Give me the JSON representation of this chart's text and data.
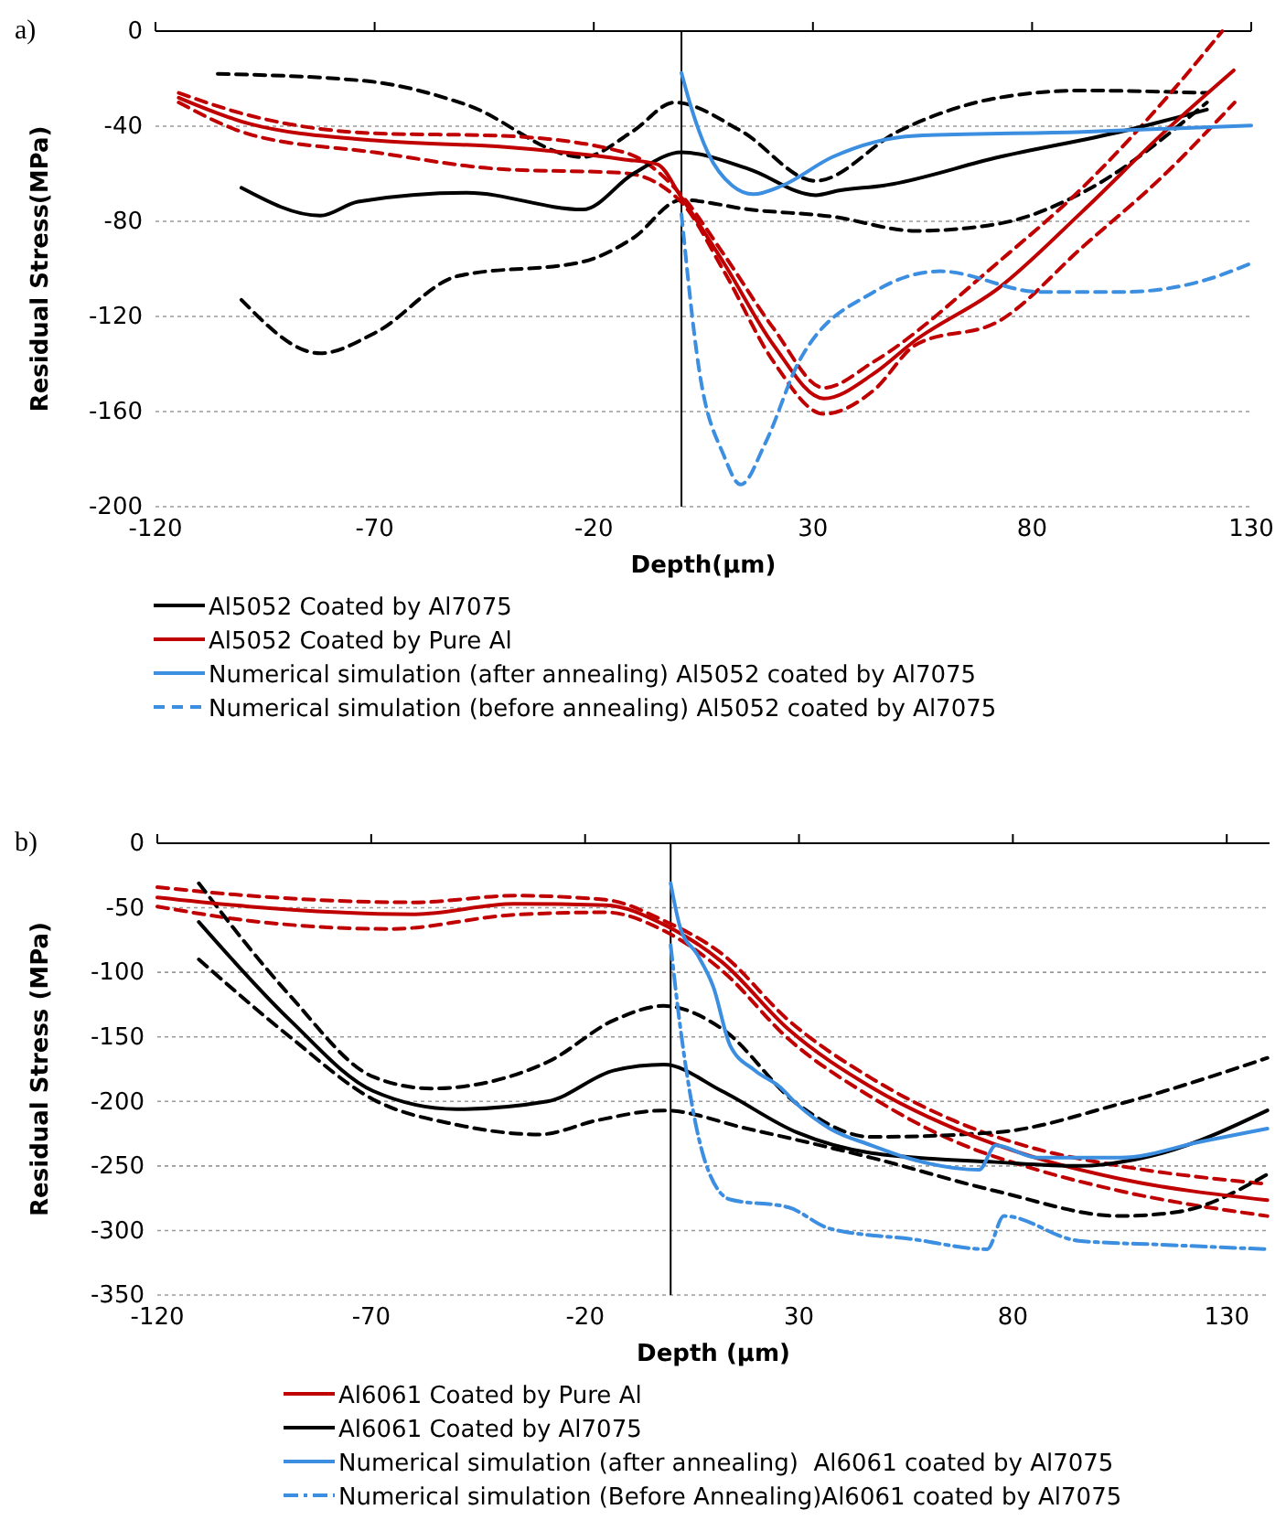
{
  "chart_data": [
    {
      "type": "line",
      "title": "a)",
      "xlabel": "Depth(μm)",
      "ylabel": "Residual Stress(MPa)",
      "xlim": [
        -120,
        130
      ],
      "xticks": [
        -120,
        -70,
        -20,
        30,
        80,
        130
      ],
      "ylim": [
        -200,
        0
      ],
      "yticks": [
        -200,
        -160,
        -120,
        -80,
        -40,
        0
      ],
      "grid": "y",
      "legend": "bottom",
      "marker": "none",
      "ref_lines": [
        {
          "axis": "x",
          "value": 0,
          "color": "#000000"
        }
      ],
      "series": [
        {
          "color": "#000000",
          "line_style": "dashed",
          "x": [
            -105.8,
            -71.9,
            -49,
            -22.5,
            -11,
            -1.6,
            13.6,
            30.6,
            49.6,
            72.4,
            91.4,
            119.9
          ],
          "values": [
            -18,
            -21,
            -31,
            -53,
            -42,
            -30,
            -42,
            -63,
            -42,
            -28,
            -25,
            -26
          ]
        },
        {
          "color": "#000000",
          "line_style": "dashed",
          "x": [
            -100.4,
            -82.4,
            -70,
            -51,
            -22.5,
            -11,
            0,
            15.4,
            34.4,
            53.4,
            72.4,
            91.4,
            119.9
          ],
          "values": [
            -113,
            -135.5,
            -127,
            -103,
            -97,
            -87,
            -71,
            -75,
            -78,
            -84,
            -81,
            -68,
            -30
          ]
        },
        {
          "color": "#c00000",
          "line_style": "dashed",
          "x": [
            -114.7,
            -98.5,
            -70,
            -41.5,
            -13,
            0,
            9.7,
            21,
            32.5,
            43.9,
            72.4,
            91.4,
            110.4,
            123.4
          ],
          "values": [
            -26,
            -35.5,
            -43,
            -44,
            -51,
            -69,
            -94,
            -125,
            -150,
            -139,
            -97,
            -66,
            -28.6,
            0
          ]
        },
        {
          "color": "#c00000",
          "line_style": "dashed",
          "x": [
            -114.7,
            -98.5,
            -70,
            -41.5,
            -13,
            0,
            9.7,
            21,
            32.5,
            43.9,
            53.4,
            72.4,
            91.4,
            110.4,
            126.2
          ],
          "values": [
            -30,
            -43.4,
            -51,
            -58,
            -59.7,
            -72,
            -101,
            -139,
            -161,
            -151,
            -132,
            -122,
            -91,
            -60,
            -30
          ]
        },
        {
          "name": "Al5052 Coated by Al7075",
          "color": "#000000",
          "line_style": "solid",
          "x": [
            -100.4,
            -82.4,
            -73.8,
            -49,
            -22.5,
            -11,
            0,
            15.4,
            30.6,
            36,
            46,
            72.4,
            100.9,
            119.9
          ],
          "values": [
            -65.9,
            -77.6,
            -71.7,
            -68,
            -75,
            -60,
            -51,
            -58,
            -69,
            -67,
            -65,
            -53,
            -42,
            -33
          ]
        },
        {
          "name": "Al5052 Coated by Pure Al",
          "color": "#c00000",
          "line_style": "solid",
          "x": [
            -114.7,
            -98.5,
            -70,
            -41.5,
            -13,
            -5.5,
            0,
            9.7,
            21,
            32.5,
            43.9,
            53.4,
            72.4,
            91.4,
            110.4,
            126
          ],
          "values": [
            -28,
            -39,
            -46,
            -48.6,
            -54,
            -56,
            -70,
            -97.6,
            -132,
            -154.5,
            -144,
            -130,
            -108,
            -76,
            -42,
            -16.5
          ]
        },
        {
          "name": "Numerical simulation (after annealing) Al5052 coated by Al7075",
          "color": "#3b8ee0",
          "line_style": "solid",
          "x": [
            0,
            2.2,
            6,
            11.6,
            16.4,
            23,
            34.4,
            53.4,
            91.4,
            130
          ],
          "values": [
            -17.6,
            -32,
            -51,
            -65,
            -68.6,
            -65,
            -53,
            -44,
            -42.4,
            -39.7
          ]
        },
        {
          "name": "Numerical simulation (before annealing) Al5052 coated by Al7075",
          "color": "#3b8ee0",
          "line_style": "dashed",
          "x": [
            0,
            4,
            9.7,
            13.5,
            19.2,
            26.8,
            43.9,
            59,
            81.9,
            100.9,
            119.9,
            130
          ],
          "values": [
            -77,
            -142,
            -178.6,
            -190.7,
            -173,
            -139,
            -109.7,
            -101,
            -109.7,
            -109.7,
            -104.5,
            -97.6
          ]
        }
      ]
    },
    {
      "type": "line",
      "title": "b)",
      "xlabel": "Depth (μm)",
      "ylabel": "Residual Stress (MPa)",
      "xlim": [
        -120,
        140
      ],
      "xticks": [
        -120,
        -70,
        -20,
        30,
        80,
        130
      ],
      "ylim": [
        -350,
        0
      ],
      "yticks": [
        -350,
        -300,
        -250,
        -200,
        -150,
        -100,
        -50,
        0
      ],
      "grid": "y",
      "legend": "bottom",
      "marker": "none",
      "ref_lines": [
        {
          "axis": "x",
          "value": 0,
          "color": "#000000"
        }
      ],
      "series": [
        {
          "color": "#c00000",
          "line_style": "dashed",
          "x": [
            -120,
            -98.6,
            -59.8,
            -36.5,
            -15.2,
            -1.6,
            12,
            27.5,
            46.9,
            66.3,
            85.7,
            105.1,
            139.5
          ],
          "values": [
            -34,
            -40.6,
            -45.8,
            -40.6,
            -43.8,
            -60,
            -85.7,
            -137,
            -182,
            -215,
            -237,
            -250,
            -264
          ]
        },
        {
          "color": "#c00000",
          "line_style": "dashed",
          "x": [
            -120,
            -98.6,
            -65.6,
            -36.5,
            -15.2,
            -1.6,
            12,
            27.5,
            46.9,
            66.3,
            85.7,
            105.1,
            139.5
          ],
          "values": [
            -49,
            -60,
            -66.4,
            -55.4,
            -53.5,
            -67.7,
            -98.6,
            -151.5,
            -196.6,
            -230.8,
            -253,
            -269.4,
            -288.8
          ]
        },
        {
          "color": "#000000",
          "line_style": "dashed",
          "x": [
            -110.3,
            -89,
            -69.5,
            -55.9,
            -28.8,
            -13.2,
            -1.6,
            12,
            29.5,
            46.9,
            76,
            105.1,
            139.5
          ],
          "values": [
            -31,
            -118,
            -181,
            -190,
            -169.5,
            -137,
            -126,
            -143.7,
            -201.8,
            -227.5,
            -224,
            -201.8,
            -166.3
          ]
        },
        {
          "color": "#000000",
          "line_style": "dashed",
          "x": [
            -110.3,
            -89,
            -69.5,
            -50.1,
            -30.7,
            -17.1,
            -1.6,
            17.8,
            46.9,
            76,
            105.1,
            118.7,
            139.5
          ],
          "values": [
            -90,
            -150,
            -198.5,
            -218,
            -225.6,
            -214.6,
            -207,
            -221,
            -243.6,
            -269.4,
            -288.8,
            -285.5,
            -256.5
          ]
        },
        {
          "name": "Al6061 Coated by Pure Al",
          "color": "#c00000",
          "line_style": "solid",
          "x": [
            -120,
            -98.6,
            -59.8,
            -36.5,
            -15.2,
            -1.6,
            12,
            27.5,
            46.9,
            66.3,
            85.7,
            105.1,
            139.5
          ],
          "values": [
            -42,
            -49,
            -55,
            -47,
            -48,
            -63,
            -92,
            -144,
            -189,
            -221,
            -244,
            -260,
            -276.5
          ]
        },
        {
          "name": "Al6061 Coated by Al7075",
          "color": "#000000",
          "line_style": "solid",
          "x": [
            -110.3,
            -89,
            -69.5,
            -50.1,
            -28.8,
            -13.2,
            -1.6,
            12,
            29.5,
            46.9,
            76,
            95.4,
            114.9,
            139.5
          ],
          "values": [
            -61,
            -137,
            -192,
            -206,
            -200,
            -176,
            -171.5,
            -192,
            -224,
            -240,
            -247,
            -250,
            -240,
            -207
          ]
        },
        {
          "name": "Numerical simulation (after annealing)  Al6061 coated by Al7075",
          "color": "#3b8ee0",
          "line_style": "solid",
          "x": [
            0,
            2.3,
            6.2,
            10,
            13.9,
            19.7,
            25.6,
            29.5,
            37.2,
            46.9,
            56.6,
            72.1,
            76,
            85.7,
            105.1,
            124.5,
            139.5
          ],
          "values": [
            -31,
            -66,
            -86,
            -111.5,
            -156.6,
            -176,
            -189,
            -202,
            -221,
            -234,
            -245,
            -253,
            -234,
            -243.6,
            -243.6,
            -230.8,
            -221
          ]
        },
        {
          "name": "Numerical simulation (Before Annealing)Al6061 coated by Al7075",
          "color": "#3b8ee0",
          "line_style": "dashdot",
          "x": [
            0,
            2.3,
            8.1,
            13.9,
            27.5,
            37.2,
            56.6,
            74,
            77.9,
            95.4,
            114.9,
            139.5
          ],
          "values": [
            -79,
            -143.7,
            -247,
            -276,
            -282,
            -298.5,
            -306.8,
            -314.5,
            -288.8,
            -308,
            -311,
            -314.5
          ]
        }
      ]
    }
  ]
}
